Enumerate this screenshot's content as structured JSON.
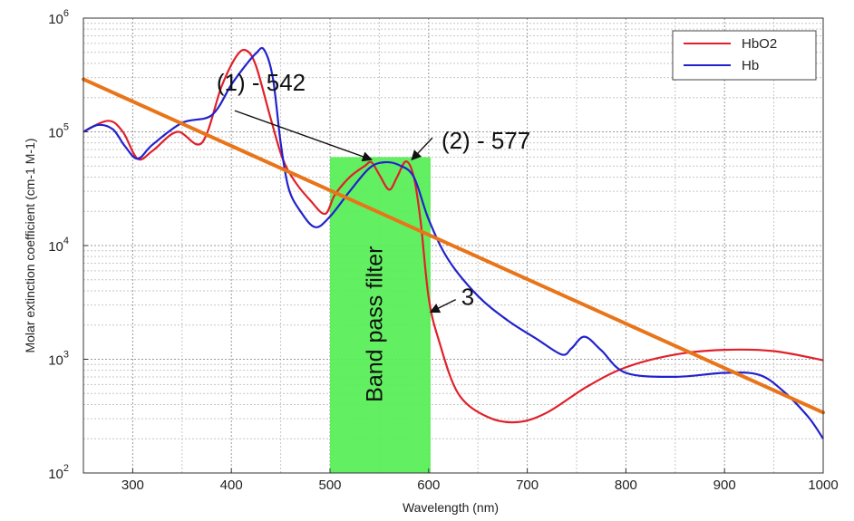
{
  "chart_data": {
    "type": "line",
    "title": "",
    "xlabel": "Wavelength (nm)",
    "ylabel": "Molar extinction coefficient (cm-1 M-1)",
    "xlim": [
      250,
      1000
    ],
    "ylim": [
      100,
      1000000
    ],
    "y_scale": "log",
    "grid": true,
    "legend_position": "top-right",
    "x_ticks": [
      {
        "value": 300,
        "label": "300"
      },
      {
        "value": 400,
        "label": "400"
      },
      {
        "value": 500,
        "label": "500"
      },
      {
        "value": 600,
        "label": "600"
      },
      {
        "value": 700,
        "label": "700"
      },
      {
        "value": 800,
        "label": "800"
      },
      {
        "value": 900,
        "label": "900"
      },
      {
        "value": 1000,
        "label": "1000"
      }
    ],
    "y_ticks": [
      {
        "value": 100,
        "base": "10",
        "exp": "2"
      },
      {
        "value": 1000,
        "base": "10",
        "exp": "3"
      },
      {
        "value": 10000,
        "base": "10",
        "exp": "4"
      },
      {
        "value": 100000,
        "base": "10",
        "exp": "5"
      },
      {
        "value": 1000000,
        "base": "10",
        "exp": "6"
      }
    ],
    "series": [
      {
        "name": "HbO2",
        "color": "#e0202a",
        "x": [
          250,
          275,
          290,
          305,
          320,
          345,
          370,
          390,
          405,
          415,
          425,
          440,
          452,
          465,
          480,
          495,
          505,
          520,
          535,
          542,
          550,
          560,
          568,
          577,
          585,
          592,
          600,
          610,
          630,
          660,
          690,
          720,
          760,
          800,
          850,
          900,
          950,
          1000
        ],
        "y": [
          100000,
          125000,
          100000,
          58000,
          68000,
          100000,
          80000,
          250000,
          460000,
          520000,
          380000,
          130000,
          58000,
          36000,
          25000,
          19000,
          28000,
          40000,
          50000,
          54000,
          42000,
          31000,
          40000,
          55000,
          40000,
          16000,
          3500,
          1500,
          500,
          310,
          280,
          340,
          570,
          850,
          1100,
          1210,
          1180,
          980
        ]
      },
      {
        "name": "Hb",
        "color": "#2222cc",
        "x": [
          250,
          265,
          280,
          292,
          305,
          320,
          350,
          380,
          400,
          415,
          425,
          433,
          442,
          450,
          458,
          470,
          485,
          500,
          520,
          540,
          555,
          570,
          585,
          600,
          620,
          650,
          680,
          710,
          735,
          745,
          758,
          775,
          800,
          850,
          900,
          935,
          960,
          985,
          1000
        ],
        "y": [
          100000,
          115000,
          105000,
          75000,
          58000,
          77000,
          120000,
          140000,
          260000,
          390000,
          490000,
          530000,
          300000,
          80000,
          32000,
          20000,
          14500,
          18000,
          30000,
          48000,
          54000,
          51000,
          40000,
          17000,
          7500,
          3600,
          2200,
          1500,
          1100,
          1250,
          1580,
          1200,
          760,
          700,
          760,
          730,
          520,
          310,
          200
        ]
      }
    ],
    "reference_line": {
      "color": "#e8751a",
      "x": [
        250,
        1000
      ],
      "y": [
        290000,
        340
      ]
    },
    "band": {
      "x0": 500,
      "x1": 602,
      "y_top": 60000,
      "y_bottom": 100,
      "color": "#55ef55",
      "label": "Band pass filter"
    },
    "annotations": [
      {
        "text": "(1) - 542",
        "text_x": 385,
        "text_y": 230000,
        "arrow_to_x": 542,
        "arrow_to_y": 57000
      },
      {
        "text": "(2) - 577",
        "text_x": 613,
        "text_y": 71000,
        "arrow_to_x": 583,
        "arrow_to_y": 57000
      },
      {
        "text": "3",
        "text_x": 633,
        "text_y": 3000,
        "arrow_to_x": 602,
        "arrow_to_y": 2600
      }
    ]
  }
}
